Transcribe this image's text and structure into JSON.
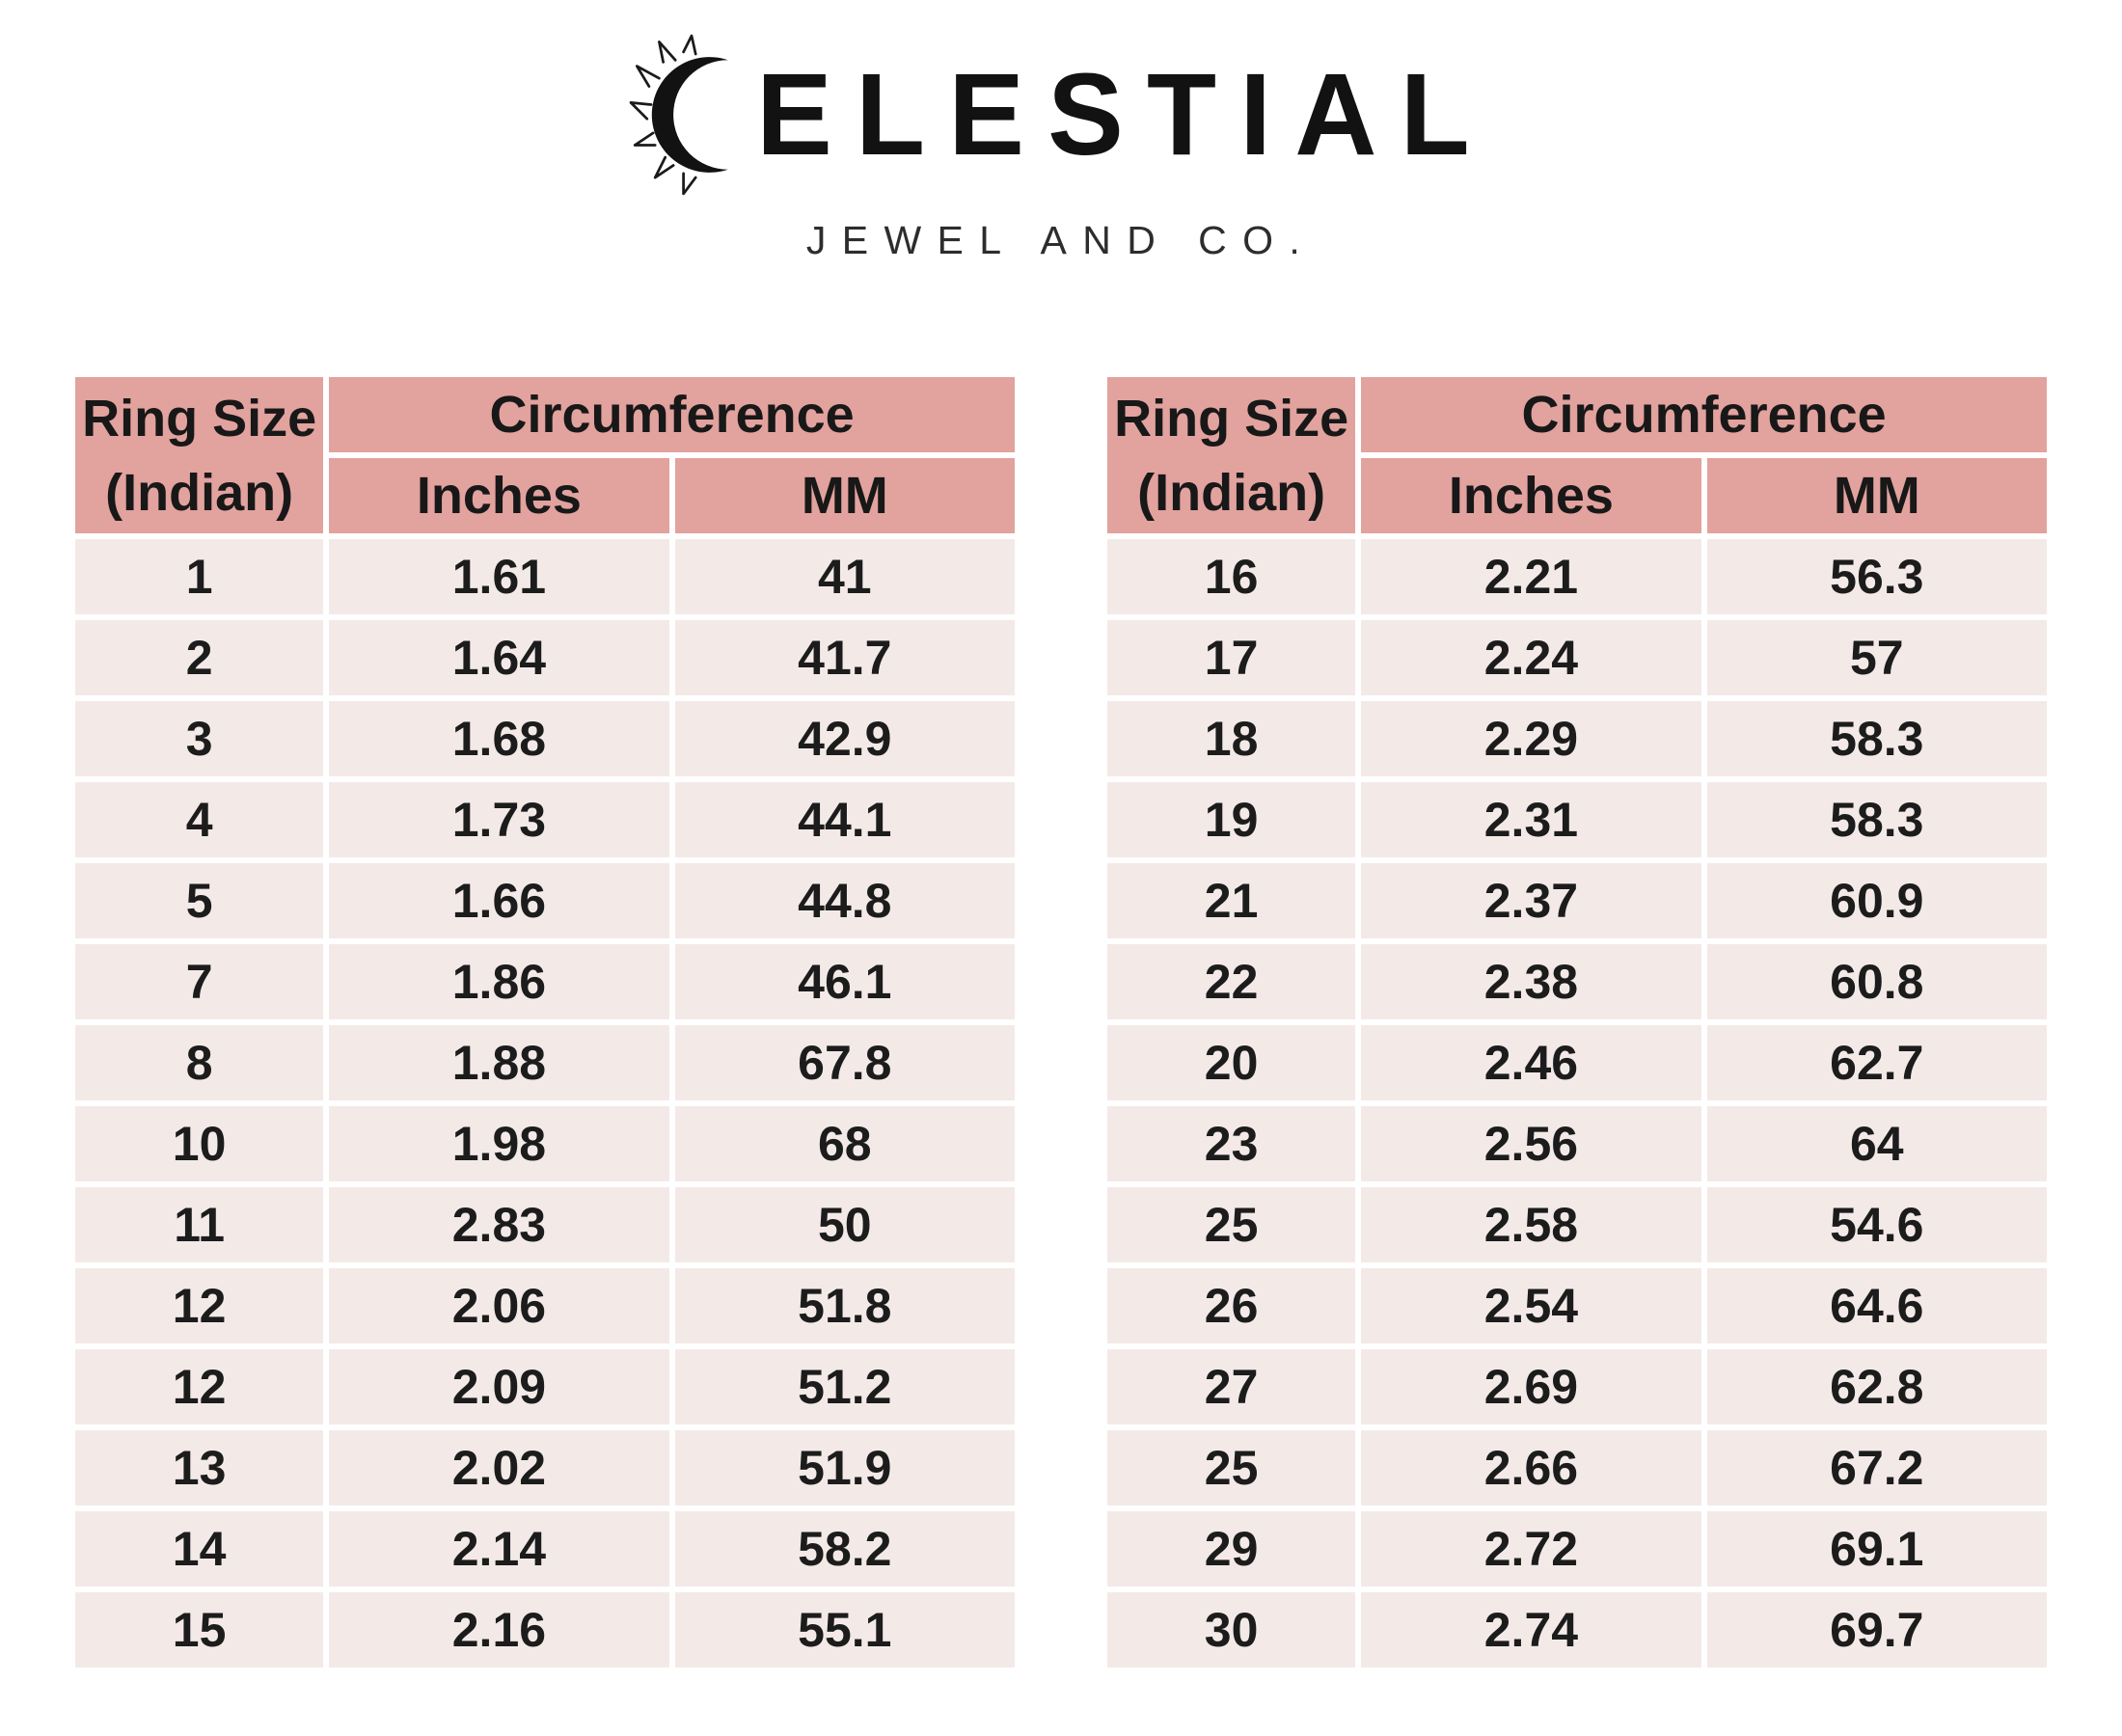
{
  "logo": {
    "brand": "CELESTIAL",
    "wordmark_visible_letters": "ELESTIAL",
    "icon": "sun-crescent-icon",
    "tagline": "JEWEL AND CO."
  },
  "colors": {
    "header_bg": "#e2a29e",
    "row_bg": "#f3eae8",
    "gap": "#ffffff",
    "text": "#1c1c1c"
  },
  "tables": [
    {
      "name": "left",
      "headers": {
        "ring_size": "Ring Size",
        "ring_size_sub": "(Indian)",
        "circumference": "Circumference",
        "inches": "Inches",
        "mm": "MM"
      },
      "rows": [
        [
          "1",
          "1.61",
          "41"
        ],
        [
          "2",
          "1.64",
          "41.7"
        ],
        [
          "3",
          "1.68",
          "42.9"
        ],
        [
          "4",
          "1.73",
          "44.1"
        ],
        [
          "5",
          "1.66",
          "44.8"
        ],
        [
          "7",
          "1.86",
          "46.1"
        ],
        [
          "8",
          "1.88",
          "67.8"
        ],
        [
          "10",
          "1.98",
          "68"
        ],
        [
          "11",
          "2.83",
          "50"
        ],
        [
          "12",
          "2.06",
          "51.8"
        ],
        [
          "12",
          "2.09",
          "51.2"
        ],
        [
          "13",
          "2.02",
          "51.9"
        ],
        [
          "14",
          "2.14",
          "58.2"
        ],
        [
          "15",
          "2.16",
          "55.1"
        ]
      ]
    },
    {
      "name": "right",
      "headers": {
        "ring_size": "Ring Size",
        "ring_size_sub": "(Indian)",
        "circumference": "Circumference",
        "inches": "Inches",
        "mm": "MM"
      },
      "rows": [
        [
          "16",
          "2.21",
          "56.3"
        ],
        [
          "17",
          "2.24",
          "57"
        ],
        [
          "18",
          "2.29",
          "58.3"
        ],
        [
          "19",
          "2.31",
          "58.3"
        ],
        [
          "21",
          "2.37",
          "60.9"
        ],
        [
          "22",
          "2.38",
          "60.8"
        ],
        [
          "20",
          "2.46",
          "62.7"
        ],
        [
          "23",
          "2.56",
          "64"
        ],
        [
          "25",
          "2.58",
          "54.6"
        ],
        [
          "26",
          "2.54",
          "64.6"
        ],
        [
          "27",
          "2.69",
          "62.8"
        ],
        [
          "25",
          "2.66",
          "67.2"
        ],
        [
          "29",
          "2.72",
          "69.1"
        ],
        [
          "30",
          "2.74",
          "69.7"
        ]
      ]
    }
  ]
}
